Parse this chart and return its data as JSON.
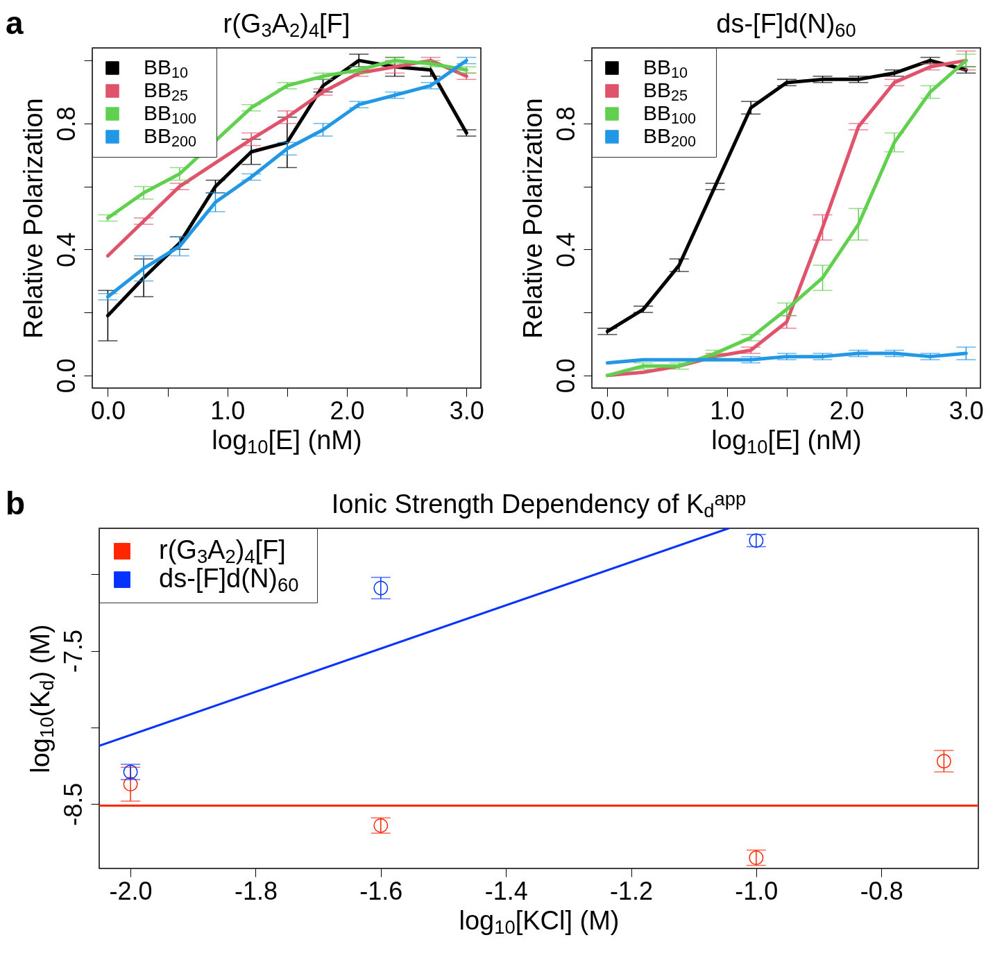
{
  "chart_data": [
    {
      "type": "line",
      "title": "r(G$_{3}$A$_{2}$)$_{4}$[F]",
      "xlabel": "log$_{10}$[E] (nM)",
      "ylabel": "Relative Polarization",
      "annotations": [
        "a"
      ],
      "legend": "top left",
      "x": [
        0,
        0.3,
        0.6,
        0.9,
        1.2,
        1.5,
        1.8,
        2.1,
        2.4,
        2.7,
        3.0
      ],
      "xlim": [
        -0.13,
        3.12
      ],
      "ylim": [
        -0.04,
        1.04
      ],
      "xticks": [
        {
          "value": 0,
          "label": "0.0"
        },
        {
          "value": 0.5,
          "label": null
        },
        {
          "value": 1,
          "label": "1.0"
        },
        {
          "value": 1.5,
          "label": null
        },
        {
          "value": 2,
          "label": "2.0"
        },
        {
          "value": 2.5,
          "label": null
        },
        {
          "value": 3,
          "label": "3.0"
        }
      ],
      "yticks": [
        {
          "value": 0,
          "label": "0.0"
        },
        {
          "value": 0.2,
          "label": null
        },
        {
          "value": 0.4,
          "label": "0.4"
        },
        {
          "value": 0.6,
          "label": null
        },
        {
          "value": 0.8,
          "label": "0.8"
        },
        {
          "value": 1.0,
          "label": null
        }
      ],
      "series": [
        {
          "name": "BB$_{10}$",
          "color": "#000000",
          "values": [
            0.19,
            0.31,
            0.42,
            0.6,
            0.71,
            0.74,
            0.92,
            1.0,
            0.98,
            0.97,
            0.77
          ],
          "errors": [
            0.08,
            0.06,
            0.02,
            0.02,
            0.04,
            0.08,
            0.02,
            0.02,
            0.03,
            0.02,
            0.01
          ]
        },
        {
          "name": "BB$_{25}$",
          "color": "#df536b",
          "values": [
            0.38,
            0.49,
            0.6,
            null,
            0.75,
            0.82,
            0.9,
            0.96,
            0.98,
            1.0,
            0.95
          ],
          "errors": [
            null,
            0.01,
            0.01,
            null,
            0.02,
            0.02,
            0.01,
            0.01,
            0.02,
            0.01,
            0.01
          ]
        },
        {
          "name": "BB$_{100}$",
          "color": "#61d04f",
          "values": [
            0.5,
            0.58,
            0.64,
            null,
            0.85,
            0.92,
            0.95,
            0.97,
            1.0,
            0.99,
            0.97
          ],
          "errors": [
            0.01,
            0.02,
            0.02,
            null,
            0.01,
            0.01,
            0.01,
            0.01,
            0.01,
            0.01,
            0.01
          ]
        },
        {
          "name": "BB$_{200}$",
          "color": "#2297e6",
          "values": [
            0.25,
            0.34,
            0.41,
            0.55,
            0.63,
            0.72,
            0.78,
            0.86,
            0.89,
            0.92,
            1.0
          ],
          "errors": [
            0.01,
            0.04,
            0.03,
            0.03,
            0.01,
            0.02,
            0.02,
            0.01,
            0.01,
            0.01,
            0.01
          ]
        }
      ]
    },
    {
      "type": "line",
      "title": "ds-[F]d(N)$_{60}$",
      "xlabel": "log$_{10}$[E] (nM)",
      "ylabel": "Relative Polarization",
      "legend": "top left",
      "x": [
        0,
        0.3,
        0.6,
        0.9,
        1.2,
        1.5,
        1.8,
        2.1,
        2.4,
        2.7,
        3.0
      ],
      "xlim": [
        -0.13,
        3.12
      ],
      "ylim": [
        -0.04,
        1.04
      ],
      "xticks": [
        {
          "value": 0,
          "label": "0.0"
        },
        {
          "value": 0.5,
          "label": null
        },
        {
          "value": 1,
          "label": "1.0"
        },
        {
          "value": 1.5,
          "label": null
        },
        {
          "value": 2,
          "label": "2.0"
        },
        {
          "value": 2.5,
          "label": null
        },
        {
          "value": 3,
          "label": "3.0"
        }
      ],
      "yticks": [
        {
          "value": 0,
          "label": "0.0"
        },
        {
          "value": 0.2,
          "label": null
        },
        {
          "value": 0.4,
          "label": "0.4"
        },
        {
          "value": 0.6,
          "label": null
        },
        {
          "value": 0.8,
          "label": "0.8"
        },
        {
          "value": 1.0,
          "label": null
        }
      ],
      "series": [
        {
          "name": "BB$_{10}$",
          "color": "#000000",
          "values": [
            0.14,
            0.21,
            0.35,
            0.6,
            0.85,
            0.93,
            0.94,
            0.94,
            0.96,
            1.0,
            0.97
          ],
          "errors": [
            0.01,
            0.01,
            0.02,
            0.01,
            0.02,
            0.01,
            0.01,
            0.01,
            0.01,
            0.01,
            0.01
          ]
        },
        {
          "name": "BB$_{25}$",
          "color": "#df536b",
          "values": [
            0.0,
            0.01,
            0.03,
            0.06,
            0.08,
            0.17,
            0.47,
            0.79,
            0.93,
            0.98,
            1.0
          ],
          "errors": [
            null,
            null,
            null,
            0.01,
            0.01,
            0.02,
            0.04,
            0.01,
            0.01,
            0.01,
            0.03
          ]
        },
        {
          "name": "BB$_{100}$",
          "color": "#61d04f",
          "values": [
            0.0,
            0.03,
            0.03,
            0.07,
            0.12,
            0.21,
            0.31,
            0.48,
            0.74,
            0.9,
            1.0
          ],
          "errors": [
            null,
            0.01,
            0.01,
            0.01,
            0.01,
            0.02,
            0.04,
            0.05,
            0.03,
            0.02,
            0.02
          ]
        },
        {
          "name": "BB$_{200}$",
          "color": "#2297e6",
          "values": [
            0.04,
            0.05,
            0.05,
            0.05,
            0.05,
            0.06,
            0.06,
            0.07,
            0.07,
            0.06,
            0.07
          ],
          "errors": [
            null,
            null,
            null,
            null,
            0.01,
            0.01,
            0.01,
            0.01,
            0.01,
            0.01,
            0.02
          ]
        }
      ]
    },
    {
      "type": "scatter",
      "title": "Ionic Strength Dependency of K$_{d}$$^{app}$",
      "xlabel": "log$_{10}$[KCl] (M)",
      "ylabel": "log$_{10}$(K$_{d}$) (M)",
      "annotations": [
        "b"
      ],
      "legend": "top left",
      "marker": "circle",
      "xlim": [
        -2.05,
        -0.645
      ],
      "ylim": [
        -8.92,
        -6.7
      ],
      "xticks": [
        {
          "value": -2.0,
          "label": "-2.0"
        },
        {
          "value": -1.8,
          "label": "-1.8"
        },
        {
          "value": -1.6,
          "label": "-1.6"
        },
        {
          "value": -1.4,
          "label": "-1.4"
        },
        {
          "value": -1.2,
          "label": "-1.2"
        },
        {
          "value": -1.0,
          "label": "-1.0"
        },
        {
          "value": -0.8,
          "label": "-0.8"
        }
      ],
      "yticks": [
        -8.5,
        {
          "value": -8,
          "label": null
        },
        -7.5,
        {
          "value": -7,
          "label": null
        }
      ],
      "series": [
        {
          "name": "r(G$_{3}$A$_{2}$)$_{4}$[F]",
          "color": "#ff2600",
          "x": [
            -2.0,
            -1.6,
            -1.0,
            -0.7
          ],
          "values": [
            -8.37,
            -8.64,
            -8.85,
            -8.22
          ],
          "errors": [
            0.11,
            0.05,
            0.05,
            0.07
          ]
        },
        {
          "name": "ds-[F]d(N)$_{60}$",
          "color": "#0433ff",
          "x": [
            -2.0,
            -1.6,
            -1.0
          ],
          "values": [
            -8.29,
            -7.09,
            -6.78
          ],
          "errors": [
            0.05,
            0.07,
            0.04
          ]
        },
        {
          "type": "line",
          "marker": "none",
          "color": "#0433ff",
          "x": [
            -2.05,
            -1.044
          ],
          "values": [
            -8.12,
            -6.7
          ]
        },
        {
          "type": "line",
          "marker": "none",
          "color": "#ff2600",
          "x": [
            -2.05,
            -0.645
          ],
          "values": [
            -8.51,
            -8.51
          ]
        }
      ]
    }
  ]
}
